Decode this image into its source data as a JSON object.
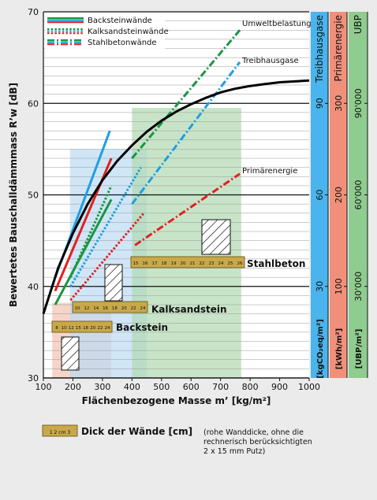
{
  "chart_data": {
    "type": "line",
    "xlabel": "Flächenbezogene Masse m’ [kg/m²]",
    "ylabel": "Bewertetes Bauschalldämmmass R’w [dB]",
    "xlim": [
      100,
      1000
    ],
    "ylim": [
      30,
      70
    ],
    "x_ticks": [
      "100",
      "200",
      "300",
      "400",
      "500",
      "600",
      "700",
      "800",
      "900",
      "1000"
    ],
    "y_ticks": [
      "30",
      "40",
      "50",
      "60",
      "70"
    ],
    "grid": "horizontal, every 1 dB",
    "legend_position": "top-left",
    "legend": [
      {
        "label": "Backsteinwände",
        "style": "solid"
      },
      {
        "label": "Kalksandsteinwände",
        "style": "dotted"
      },
      {
        "label": "Stahlbetonwände",
        "style": "dash-dot"
      }
    ],
    "mass_law_curve": {
      "x": [
        100,
        150,
        200,
        250,
        300,
        350,
        400,
        450,
        500,
        550,
        600,
        650,
        700,
        750,
        800,
        850,
        900,
        950,
        1000
      ],
      "y": [
        37.0,
        42.0,
        45.8,
        49.0,
        51.6,
        53.7,
        55.4,
        56.9,
        58.1,
        59.1,
        59.9,
        60.6,
        61.2,
        61.6,
        61.9,
        62.1,
        62.3,
        62.4,
        62.5
      ]
    },
    "series": [
      {
        "name": "Umweltbelastung",
        "material": "Stahlbeton",
        "color": "#1a9641",
        "style": "dash-dot",
        "x": [
          400,
          765
        ],
        "y": [
          54,
          68
        ]
      },
      {
        "name": "Treibhausgase",
        "material": "Stahlbeton",
        "color": "#1e9fe0",
        "style": "dash-dot",
        "x": [
          400,
          765
        ],
        "y": [
          49,
          64.5
        ]
      },
      {
        "name": "Primärenergie",
        "material": "Stahlbeton",
        "color": "#e02020",
        "style": "dash-dot",
        "x": [
          410,
          765
        ],
        "y": [
          44.5,
          52.3
        ]
      },
      {
        "name": "Umweltbelastung",
        "material": "Kalksandstein",
        "color": "#1a9641",
        "style": "dotted",
        "x": [
          192,
          330
        ],
        "y": [
          41,
          51
        ]
      },
      {
        "name": "Treibhausgase",
        "material": "Kalksandstein",
        "color": "#1e9fe0",
        "style": "dotted",
        "x": [
          192,
          430
        ],
        "y": [
          40,
          53
        ]
      },
      {
        "name": "Primärenergie",
        "material": "Kalksandstein",
        "color": "#e02020",
        "style": "dotted",
        "x": [
          192,
          440
        ],
        "y": [
          38.5,
          48
        ]
      },
      {
        "name": "Umweltbelastung",
        "material": "Backstein",
        "color": "#1a9641",
        "style": "solid",
        "x": [
          140,
          330
        ],
        "y": [
          38,
          49.5
        ]
      },
      {
        "name": "Treibhausgase",
        "material": "Backstein",
        "color": "#1e9fe0",
        "style": "solid",
        "x": [
          140,
          325
        ],
        "y": [
          41,
          57
        ]
      },
      {
        "name": "Primärenergie",
        "material": "Backstein",
        "color": "#e02020",
        "style": "solid",
        "x": [
          140,
          330
        ],
        "y": [
          39.5,
          54
        ]
      }
    ],
    "annotations": [
      "Umweltbelastung",
      "Treibhausgase",
      "Primärenergie"
    ],
    "mass_ranges": [
      {
        "material": "Backstein",
        "x": [
          130,
          330
        ],
        "color": "#f2c2b0"
      },
      {
        "material": "Kalksandstein",
        "x": [
          190,
          450
        ],
        "color": "#bcdcf4"
      },
      {
        "material": "Stahlbeton",
        "x": [
          400,
          770
        ],
        "color": "#b0d9b0"
      }
    ],
    "right_axes": [
      {
        "unit": "[kgCO₂eq/m²]",
        "title": "Treibhausgase",
        "color": "#4ab4ec",
        "ticks": [
          "30",
          "60",
          "90"
        ]
      },
      {
        "unit": "[kWh/m²]",
        "title": "Primärenergie",
        "color": "#f0907a",
        "ticks": [
          "100",
          "200",
          "300"
        ]
      },
      {
        "unit": "[UBP/m²]",
        "title": "UBP",
        "color": "#8fcc8f",
        "ticks": [
          "30'000",
          "60'000",
          "90'000"
        ]
      }
    ],
    "materials": [
      {
        "label": "Stahlbeton",
        "ruler": [
          "15",
          "16",
          "17",
          "18",
          "19",
          "20",
          "21",
          "22",
          "23",
          "24",
          "25",
          "26"
        ]
      },
      {
        "label": "Kalksandstein",
        "ruler": [
          "10",
          "12",
          "14",
          "16",
          "18",
          "20",
          "22",
          "24"
        ]
      },
      {
        "label": "Backstein",
        "ruler": [
          "8",
          "10",
          "12",
          "15",
          "18",
          "20",
          "22",
          "24"
        ]
      }
    ]
  },
  "footnote": {
    "ruler_text": "Dick der Wände [cm]",
    "ruler_sample": "1 2 cm 3",
    "note_lines": [
      "(rohe Wanddicke, ohne die",
      "rechnerisch berücksichtigten",
      "2 x 15 mm Putz)"
    ]
  },
  "colors": {
    "brick_red": "#e02020",
    "lime_blue": "#1e9fe0",
    "concrete_green": "#1a9641",
    "ruler_gold": "#c8a84a"
  }
}
